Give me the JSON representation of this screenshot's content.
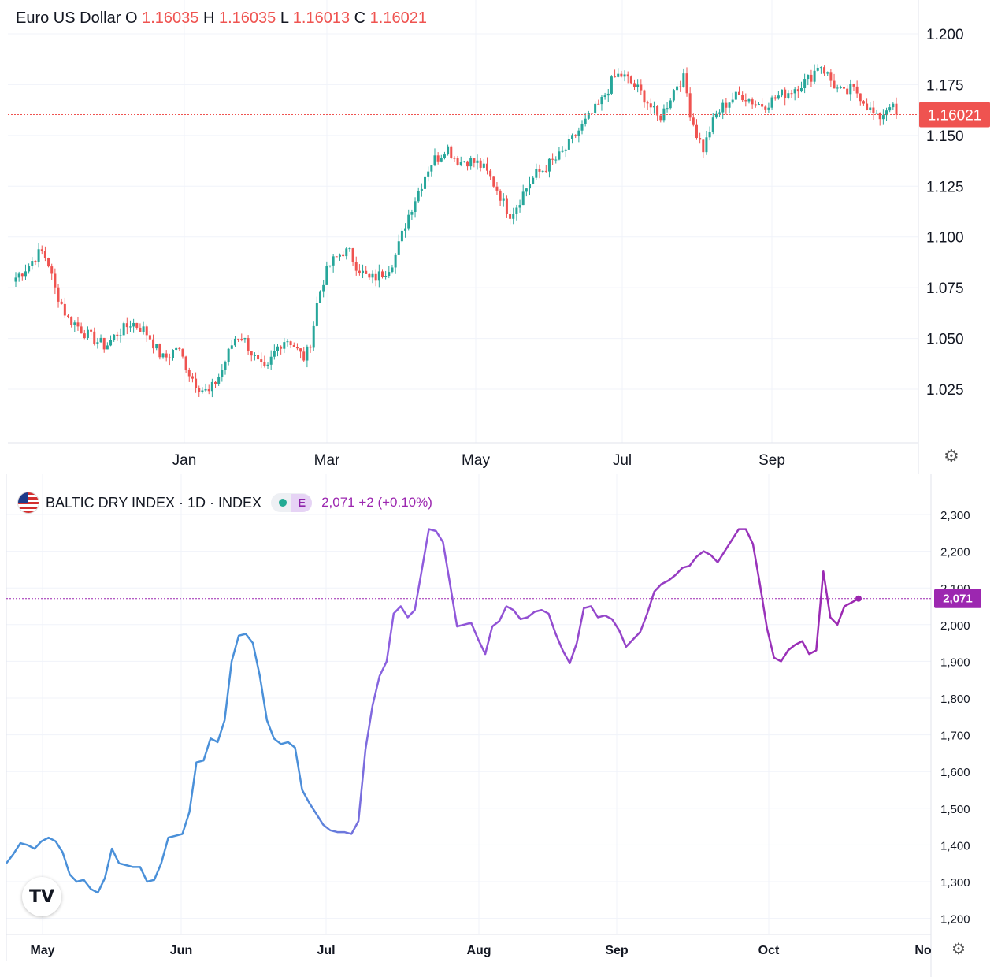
{
  "top_legend": {
    "title": "Euro US Dollar",
    "o_label": "O",
    "o_value": "1.16035",
    "h_label": "H",
    "h_value": "1.16035",
    "l_label": "L",
    "l_value": "1.16013",
    "c_label": "C",
    "c_value": "1.16021"
  },
  "bottom_legend": {
    "title": "BALTIC DRY INDEX · 1D · INDEX",
    "badge": "E",
    "value_text": "2,071 +2 (+0.10%)"
  },
  "colors": {
    "up": "#26a69a",
    "down": "#ef5350",
    "line_start": "#4a90d9",
    "line_end": "#9c27b0",
    "grid": "#f0f3fa",
    "text": "#131722"
  },
  "icons": {
    "top_settings": "gear-icon",
    "bottom_settings": "settings-icon",
    "logo": "tradingview-logo"
  },
  "logo_text": "TV",
  "chart_data": [
    {
      "type": "candlestick",
      "title": "Euro US Dollar",
      "x_ticks": [
        "Jan",
        "Mar",
        "May",
        "Jul",
        "Sep"
      ],
      "y_ticks": [
        "1.200",
        "1.175",
        "1.150",
        "1.125",
        "1.100",
        "1.075",
        "1.050",
        "1.025"
      ],
      "ylim": [
        1.0,
        1.2
      ],
      "last_price": 1.16021,
      "last_price_label": "1.16021",
      "close_path": [
        1.08,
        1.083,
        1.086,
        1.09,
        1.093,
        1.088,
        1.075,
        1.068,
        1.06,
        1.058,
        1.055,
        1.052,
        1.05,
        1.048,
        1.046,
        1.05,
        1.053,
        1.055,
        1.058,
        1.056,
        1.054,
        1.05,
        1.044,
        1.04,
        1.042,
        1.046,
        1.04,
        1.033,
        1.028,
        1.025,
        1.023,
        1.028,
        1.034,
        1.042,
        1.05,
        1.052,
        1.047,
        1.041,
        1.036,
        1.033,
        1.042,
        1.047,
        1.05,
        1.048,
        1.043,
        1.04,
        1.05,
        1.07,
        1.08,
        1.087,
        1.09,
        1.093,
        1.092,
        1.086,
        1.082,
        1.079,
        1.08,
        1.082,
        1.085,
        1.09,
        1.1,
        1.11,
        1.118,
        1.125,
        1.133,
        1.138,
        1.14,
        1.145,
        1.14,
        1.137,
        1.138,
        1.137,
        1.136,
        1.133,
        1.128,
        1.123,
        1.116,
        1.111,
        1.116,
        1.122,
        1.127,
        1.131,
        1.133,
        1.136,
        1.138,
        1.141,
        1.145,
        1.15,
        1.154,
        1.158,
        1.162,
        1.166,
        1.172,
        1.178,
        1.18,
        1.178,
        1.175,
        1.172,
        1.168,
        1.163,
        1.158,
        1.163,
        1.17,
        1.176,
        1.178,
        1.16,
        1.15,
        1.143,
        1.153,
        1.16,
        1.164,
        1.167,
        1.169,
        1.17,
        1.168,
        1.166,
        1.165,
        1.166,
        1.168,
        1.17,
        1.171,
        1.173,
        1.175,
        1.177,
        1.18,
        1.186,
        1.181,
        1.176,
        1.172,
        1.17,
        1.173,
        1.171,
        1.167,
        1.162,
        1.158,
        1.161,
        1.166,
        1.16
      ]
    },
    {
      "type": "line",
      "title": "BALTIC DRY INDEX · 1D · INDEX",
      "x_ticks": [
        "May",
        "Jun",
        "Jul",
        "Aug",
        "Sep",
        "Oct",
        "No"
      ],
      "y_ticks": [
        "2,300",
        "2,200",
        "2,100",
        "2,000",
        "1,900",
        "1,800",
        "1,700",
        "1,600",
        "1,500",
        "1,400",
        "1,300",
        "1,200"
      ],
      "ylim": [
        1150,
        2350
      ],
      "last_value": 2071,
      "last_value_label": "2,071",
      "values": [
        1350,
        1375,
        1405,
        1400,
        1390,
        1410,
        1420,
        1410,
        1380,
        1320,
        1300,
        1305,
        1280,
        1270,
        1310,
        1390,
        1350,
        1345,
        1340,
        1340,
        1300,
        1305,
        1350,
        1420,
        1425,
        1430,
        1490,
        1625,
        1630,
        1690,
        1680,
        1740,
        1900,
        1970,
        1975,
        1950,
        1860,
        1740,
        1690,
        1675,
        1680,
        1665,
        1550,
        1515,
        1485,
        1455,
        1440,
        1435,
        1435,
        1430,
        1465,
        1660,
        1780,
        1860,
        1900,
        2030,
        2050,
        2020,
        2040,
        2150,
        2260,
        2255,
        2225,
        2110,
        1995,
        2000,
        2005,
        1960,
        1920,
        1995,
        2010,
        2050,
        2040,
        2015,
        2020,
        2035,
        2040,
        2030,
        1975,
        1930,
        1895,
        1950,
        2045,
        2050,
        2020,
        2025,
        2015,
        1985,
        1940,
        1960,
        1980,
        2030,
        2090,
        2110,
        2120,
        2135,
        2155,
        2160,
        2185,
        2200,
        2190,
        2170,
        2200,
        2230,
        2260,
        2260,
        2220,
        2110,
        1990,
        1910,
        1900,
        1930,
        1945,
        1955,
        1920,
        1930,
        2145,
        2020,
        2000,
        2050,
        2060,
        2071
      ]
    }
  ]
}
